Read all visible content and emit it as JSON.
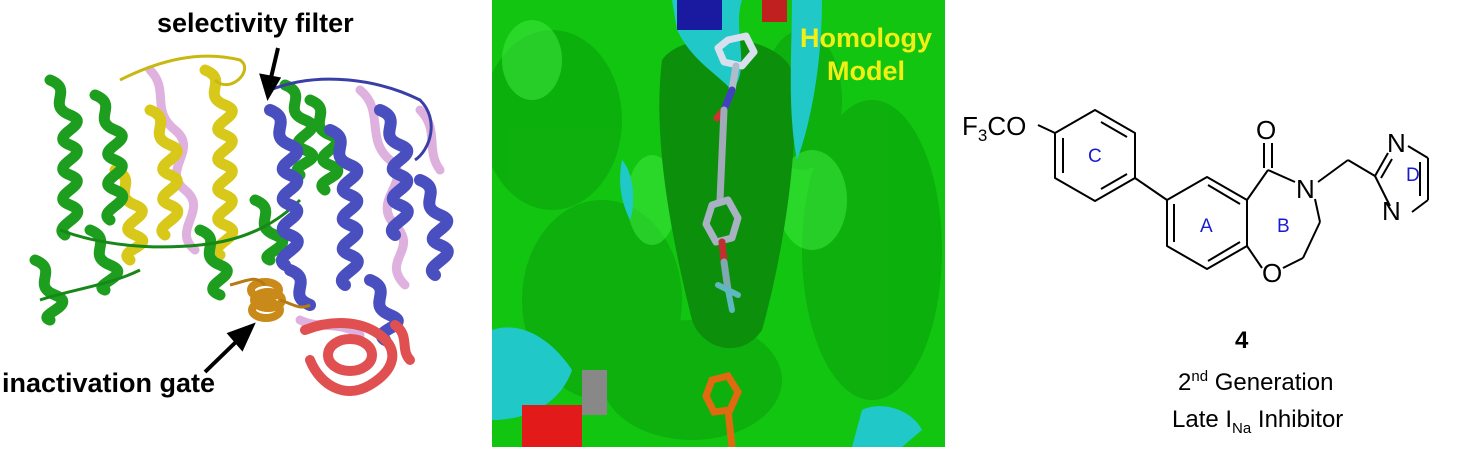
{
  "panel_a": {
    "label_top": "selectivity filter",
    "label_bottom": "inactivation gate"
  },
  "panel_b": {
    "label_line1": "Homology",
    "label_line2": "Model"
  },
  "panel_c": {
    "substituent": "F3CO",
    "ring_labels": {
      "c": "C",
      "a": "A",
      "b": "B",
      "d": "D"
    },
    "atoms": {
      "carbonyl_o": "O",
      "amide_n": "N",
      "ring_o": "O",
      "pyr_n1": "N",
      "pyr_n2": "N"
    },
    "compound_number": "4",
    "caption_line1": "2nd Generation",
    "caption_line2": "Late INa Inhibitor"
  },
  "colors": {
    "helix_green": "#1e9e1e",
    "helix_blue": "#4a4fbf",
    "helix_yellow": "#d8c81a",
    "helix_pink": "#d9a3d9",
    "helix_red": "#e05050",
    "helix_orange": "#c98a1a",
    "surface_green": "#11c511",
    "surface_cyan": "#20c8c8",
    "label_yellow": "#f2ef14",
    "ring_label_blue": "#1a1ad0"
  }
}
